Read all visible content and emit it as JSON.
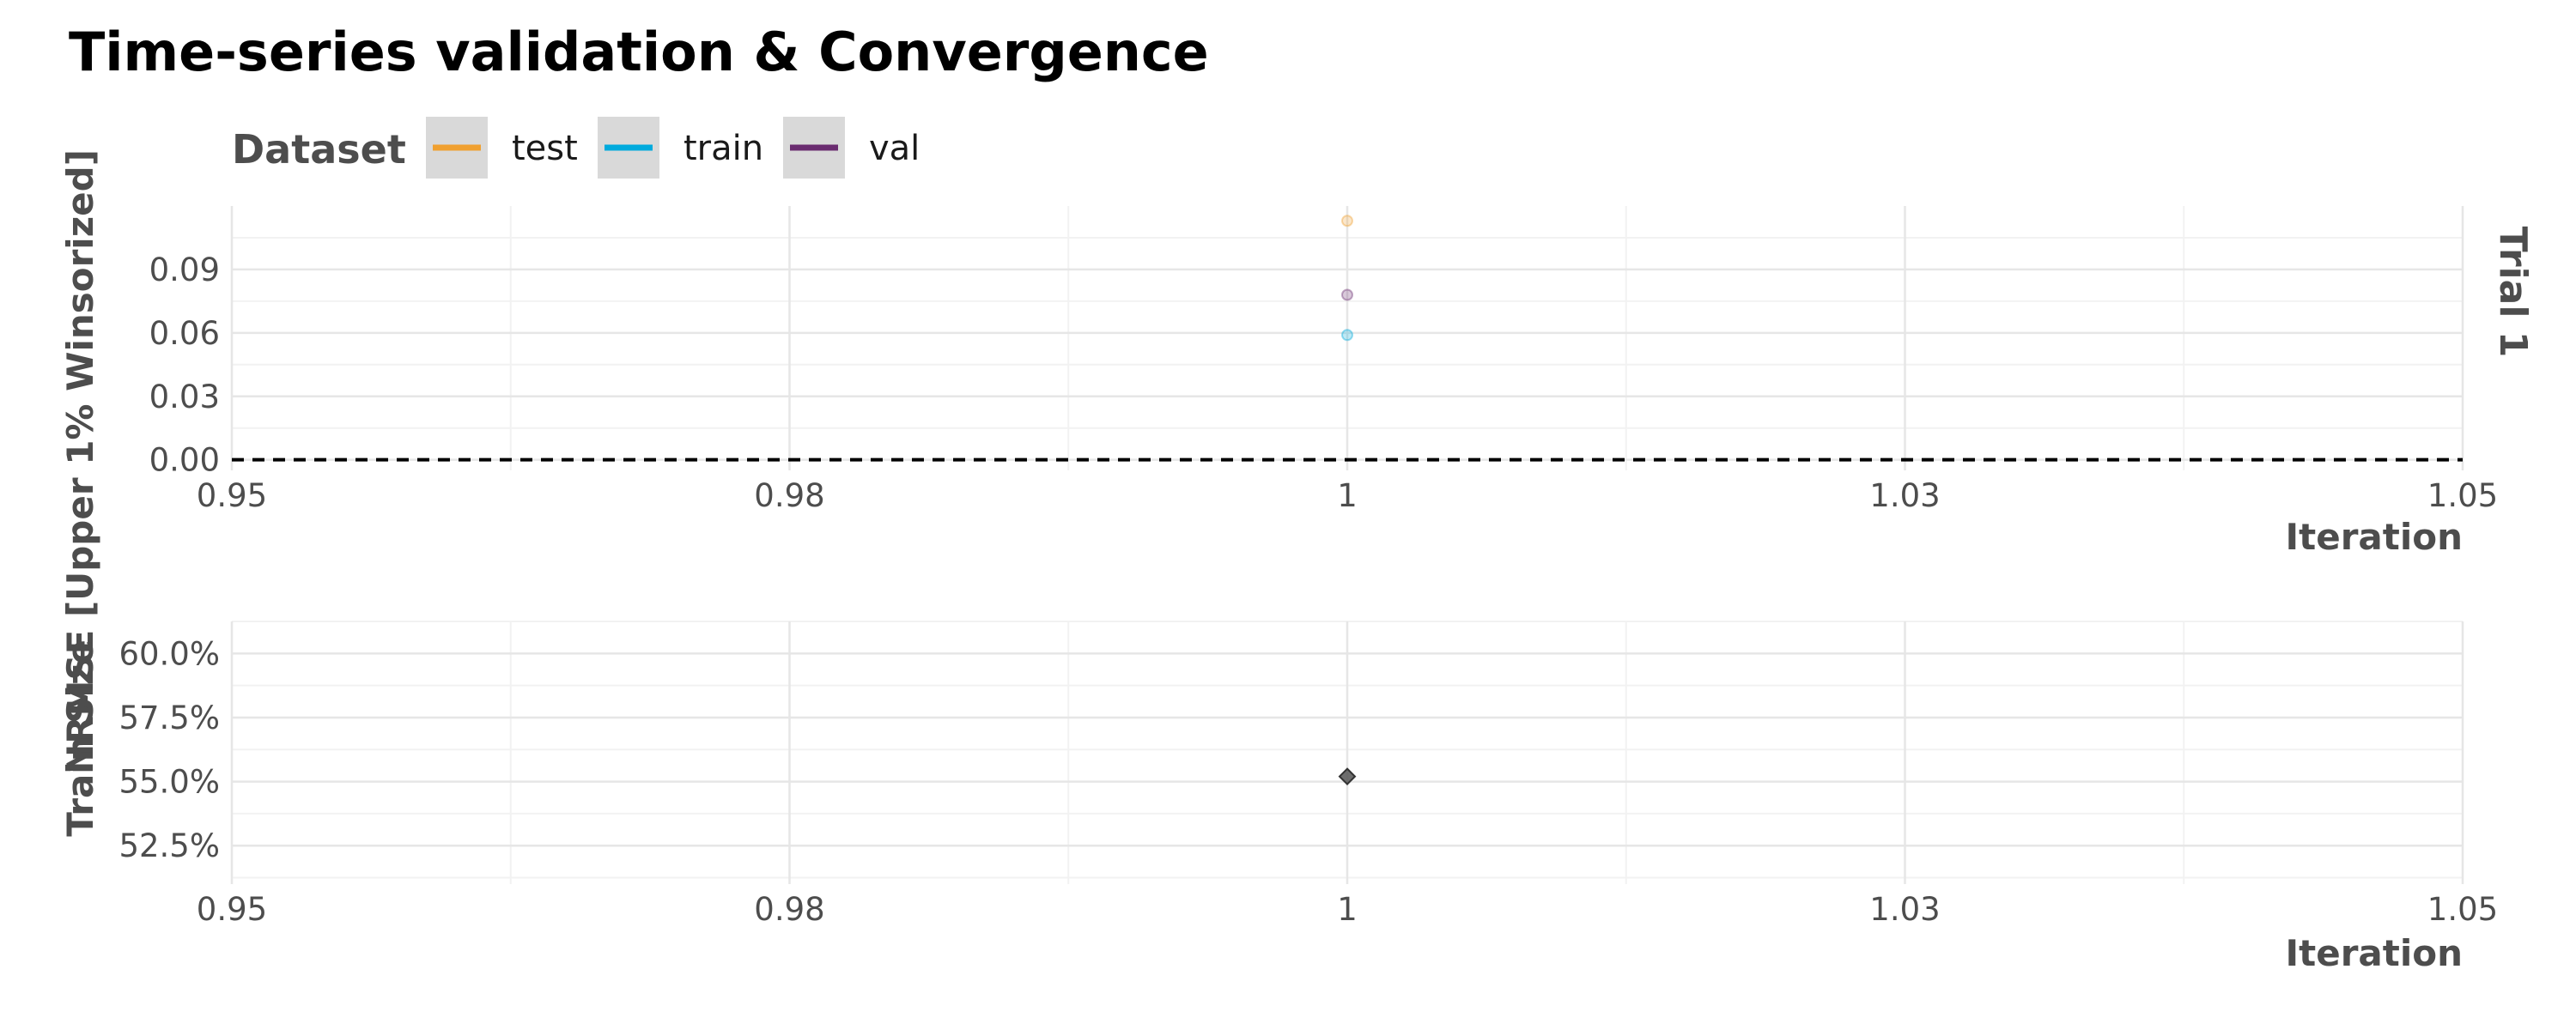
{
  "chart_data": {
    "title": "Time-series validation & Convergence",
    "legend": {
      "title": "Dataset",
      "position": "top-left",
      "entries": [
        {
          "name": "test",
          "color": "#f0a030"
        },
        {
          "name": "train",
          "color": "#00aadd"
        },
        {
          "name": "val",
          "color": "#6a2c70"
        }
      ]
    },
    "panels": [
      {
        "type": "scatter",
        "strip_label": "Trial 1",
        "ylabel": "NRMSE [Upper 1% Winsorized]",
        "xlabel": "Iteration",
        "xlim": [
          0.95,
          1.05
        ],
        "ylim": [
          -0.005,
          0.12
        ],
        "x_ticks": [
          "0.95",
          "0.98",
          "1",
          "1.03",
          "1.05"
        ],
        "x_tick_values": [
          0.95,
          0.975,
          1.0,
          1.025,
          1.05
        ],
        "y_ticks": [
          "0.00",
          "0.03",
          "0.06",
          "0.09"
        ],
        "y_tick_values": [
          0.0,
          0.03,
          0.06,
          0.09
        ],
        "grid": true,
        "reference_line": {
          "y": 0,
          "style": "dashed",
          "color": "#000000"
        },
        "series": [
          {
            "name": "test",
            "x": [
              1
            ],
            "y": [
              0.113
            ]
          },
          {
            "name": "train",
            "x": [
              1
            ],
            "y": [
              0.059
            ]
          },
          {
            "name": "val",
            "x": [
              1
            ],
            "y": [
              0.078
            ]
          }
        ]
      },
      {
        "type": "scatter",
        "ylabel": "Train Size",
        "xlabel": "Iteration",
        "xlim": [
          0.95,
          1.05
        ],
        "ylim": [
          0.51,
          0.6125
        ],
        "x_ticks": [
          "0.95",
          "0.98",
          "1",
          "1.03",
          "1.05"
        ],
        "x_tick_values": [
          0.95,
          0.975,
          1.0,
          1.025,
          1.05
        ],
        "y_ticks": [
          "52.5%",
          "55.0%",
          "57.5%",
          "60.0%"
        ],
        "y_tick_values": [
          0.525,
          0.55,
          0.575,
          0.6
        ],
        "grid": true,
        "series": [
          {
            "x": [
              1
            ],
            "y": [
              0.552
            ],
            "color": "#555555",
            "marker": "diamond"
          }
        ]
      }
    ]
  }
}
